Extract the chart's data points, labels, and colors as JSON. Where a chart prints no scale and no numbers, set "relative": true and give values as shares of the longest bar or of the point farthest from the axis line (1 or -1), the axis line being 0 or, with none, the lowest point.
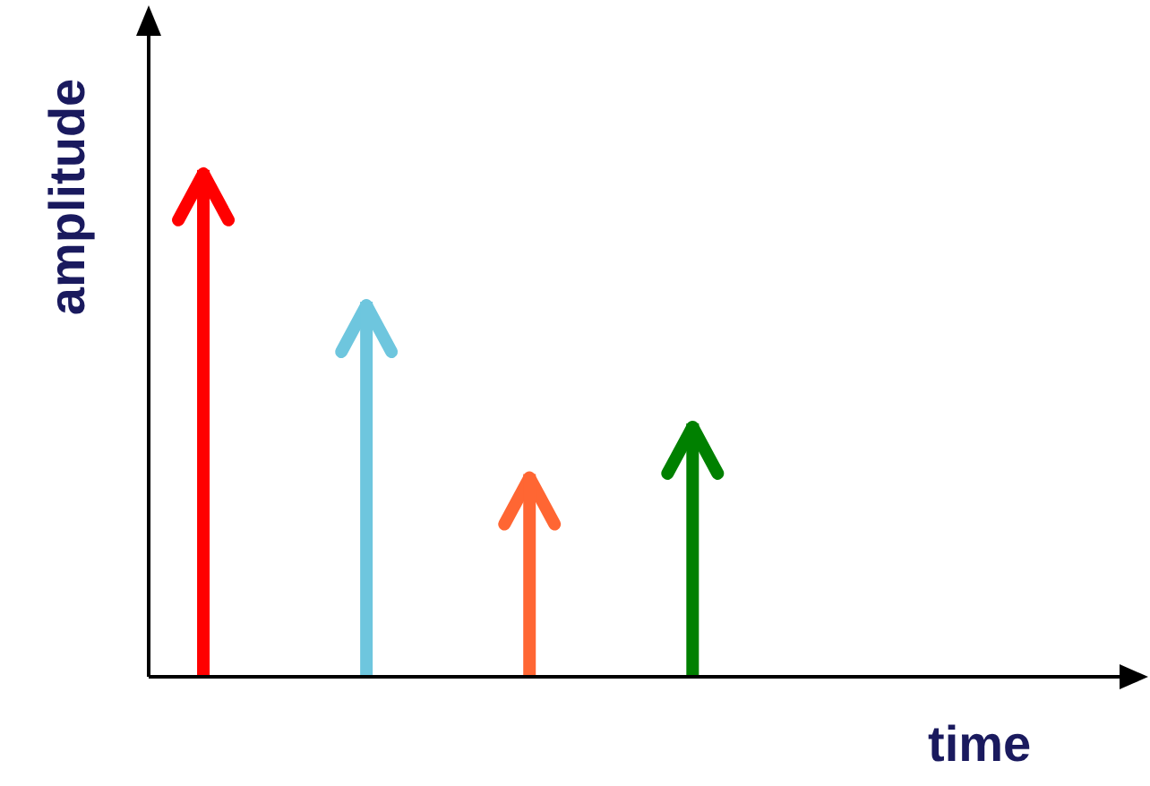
{
  "chart_data": {
    "type": "bar",
    "relative": true,
    "xlabel": "time",
    "ylabel": "amplitude",
    "categories": [
      null,
      null,
      null,
      null
    ],
    "values": [
      1,
      0.74,
      0.4,
      0.5
    ],
    "colors": [
      "#ff0000",
      "#6ec6de",
      "#ff6633",
      "#008000"
    ]
  }
}
